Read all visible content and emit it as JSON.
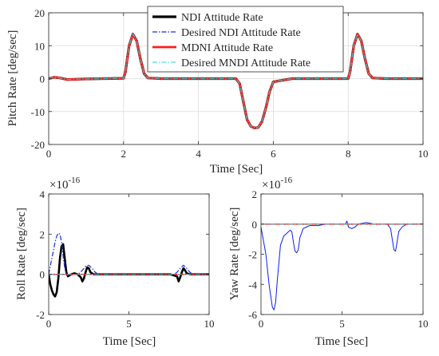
{
  "chart_data": [
    {
      "type": "line",
      "xlabel": "Time  [Sec]",
      "ylabel": "Pitch Rate [deg/sec]",
      "xlim": [
        0,
        10
      ],
      "ylim": [
        -20,
        20
      ],
      "xticks": [
        0,
        2,
        4,
        6,
        8,
        10
      ],
      "yticks": [
        -20,
        -10,
        0,
        10,
        20
      ],
      "grid": true,
      "legend_position": "top-center",
      "series": [
        {
          "name": "NDI Attitude Rate",
          "color": "#000000",
          "style": "solid",
          "x": [
            0,
            0.15,
            0.3,
            0.5,
            1.0,
            1.5,
            2.0,
            2.05,
            2.15,
            2.25,
            2.35,
            2.45,
            2.55,
            2.65,
            3.0,
            4.0,
            5.0,
            5.1,
            5.2,
            5.3,
            5.4,
            5.5,
            5.6,
            5.7,
            5.8,
            5.9,
            6.0,
            6.5,
            7.0,
            8.0,
            8.05,
            8.15,
            8.25,
            8.35,
            8.45,
            8.55,
            8.65,
            9.0,
            10.0
          ],
          "y": [
            0,
            0.4,
            0.2,
            -0.3,
            -0.1,
            0,
            0.1,
            2,
            10,
            13.5,
            11.5,
            6,
            1.5,
            0.2,
            0,
            0,
            0,
            -1.5,
            -7,
            -12.5,
            -14.5,
            -15,
            -14.8,
            -13,
            -9,
            -4,
            -1,
            0,
            0,
            0,
            2,
            10,
            13.5,
            11.5,
            6,
            1.5,
            0.2,
            0,
            0
          ]
        },
        {
          "name": "Desired NDI Attitude Rate",
          "color": "#1a2fd6",
          "style": "dashdot",
          "x": [
            0,
            0.15,
            0.3,
            0.5,
            1.0,
            1.5,
            2.0,
            2.05,
            2.15,
            2.25,
            2.35,
            2.45,
            2.55,
            2.65,
            3.0,
            4.0,
            5.0,
            5.1,
            5.2,
            5.3,
            5.4,
            5.5,
            5.6,
            5.7,
            5.8,
            5.9,
            6.0,
            6.5,
            7.0,
            8.0,
            8.05,
            8.15,
            8.25,
            8.35,
            8.45,
            8.55,
            8.65,
            9.0,
            10.0
          ],
          "y": [
            0,
            0.4,
            0.2,
            -0.3,
            -0.1,
            0,
            0.1,
            2,
            10,
            13.5,
            11.5,
            6,
            1.5,
            0.2,
            0,
            0,
            0,
            -1.5,
            -7,
            -12.5,
            -14.5,
            -15,
            -14.8,
            -13,
            -9,
            -4,
            -1,
            0,
            0,
            0,
            2,
            10,
            13.5,
            11.5,
            6,
            1.5,
            0.2,
            0,
            0
          ]
        },
        {
          "name": "MDNI Attitude Rate",
          "color": "#ff1a1a",
          "style": "solid",
          "x": [
            0,
            0.15,
            0.3,
            0.5,
            1.0,
            1.5,
            2.0,
            2.05,
            2.15,
            2.25,
            2.35,
            2.45,
            2.55,
            2.65,
            3.0,
            4.0,
            5.0,
            5.1,
            5.2,
            5.3,
            5.4,
            5.5,
            5.6,
            5.7,
            5.8,
            5.9,
            6.0,
            6.5,
            7.0,
            8.0,
            8.05,
            8.15,
            8.25,
            8.35,
            8.45,
            8.55,
            8.65,
            9.0,
            10.0
          ],
          "y": [
            0,
            0.4,
            0.2,
            -0.3,
            -0.1,
            0,
            0.1,
            2,
            10,
            13.5,
            11.5,
            6,
            1.5,
            0.2,
            0,
            0,
            0,
            -1.5,
            -7,
            -12.5,
            -14.5,
            -15,
            -14.8,
            -13,
            -9,
            -4,
            -1,
            0,
            0,
            0,
            2,
            10,
            13.5,
            11.5,
            6,
            1.5,
            0.2,
            0,
            0
          ]
        },
        {
          "name": "Desired MNDI Attitude Rate",
          "color": "#22d3d3",
          "style": "dashdot",
          "x": [
            0,
            0.15,
            0.3,
            0.5,
            1.0,
            1.5,
            2.0,
            2.05,
            2.15,
            2.25,
            2.35,
            2.45,
            2.55,
            2.65,
            3.0,
            4.0,
            5.0,
            5.1,
            5.2,
            5.3,
            5.4,
            5.5,
            5.6,
            5.7,
            5.8,
            5.9,
            6.0,
            6.5,
            7.0,
            8.0,
            8.05,
            8.15,
            8.25,
            8.35,
            8.45,
            8.55,
            8.65,
            9.0,
            10.0
          ],
          "y": [
            0,
            0.4,
            0.2,
            -0.3,
            -0.1,
            0,
            0.1,
            2,
            10,
            13.5,
            11.5,
            6,
            1.5,
            0.2,
            0,
            0,
            0,
            -1.5,
            -7,
            -12.5,
            -14.5,
            -15,
            -14.8,
            -13,
            -9,
            -4,
            -1,
            0,
            0,
            0,
            2,
            10,
            13.5,
            11.5,
            6,
            1.5,
            0.2,
            0,
            0
          ]
        }
      ]
    },
    {
      "type": "line",
      "xlabel": "Time  [Sec]",
      "ylabel": "Roll Rate [deg/sec]",
      "exponent_base": "×10",
      "exponent_power": "-16",
      "xlim": [
        0,
        10
      ],
      "ylim": [
        -2,
        4
      ],
      "xticks": [
        0,
        5,
        10
      ],
      "yticks": [
        -2,
        0,
        2,
        4
      ],
      "grid": false,
      "series": [
        {
          "color": "#000000",
          "style": "solid",
          "width": 2.6,
          "x": [
            0,
            0.1,
            0.2,
            0.3,
            0.4,
            0.5,
            0.6,
            0.7,
            0.8,
            0.9,
            1.0,
            1.1,
            1.2,
            1.3,
            1.4,
            1.6,
            1.8,
            2.0,
            2.1,
            2.2,
            2.3,
            2.4,
            2.5,
            2.6,
            2.8,
            3.0,
            3.5,
            4,
            5,
            6,
            7,
            7.6,
            8.0,
            8.1,
            8.2,
            8.3,
            8.4,
            8.5,
            8.6,
            8.8,
            9,
            10
          ],
          "y": [
            0,
            -0.5,
            -0.8,
            -1.0,
            -1.1,
            -0.9,
            -0.2,
            0.8,
            1.4,
            1.5,
            0.8,
            0.1,
            -0.1,
            -0.05,
            0,
            0.05,
            0,
            -0.15,
            -0.35,
            -0.2,
            0.1,
            0.35,
            0.3,
            0.1,
            0,
            0,
            0,
            0,
            0,
            0,
            0,
            0,
            -0.1,
            -0.35,
            -0.15,
            0.1,
            0.3,
            0.2,
            0.05,
            0,
            0,
            0
          ]
        },
        {
          "color": "#1a2fd6",
          "style": "dashdot",
          "width": 1.2,
          "x": [
            0,
            0.1,
            0.2,
            0.3,
            0.4,
            0.5,
            0.6,
            0.7,
            0.8,
            0.9,
            1.0,
            1.1,
            1.2,
            1.3,
            1.5,
            1.7,
            1.9,
            2.1,
            2.3,
            2.5,
            2.7,
            2.9,
            3.1,
            3.5,
            4,
            5,
            6,
            7,
            7.8,
            8.0,
            8.2,
            8.4,
            8.6,
            8.8,
            9,
            10
          ],
          "y": [
            0,
            0.4,
            0.8,
            1.2,
            1.6,
            1.9,
            2.05,
            2.0,
            1.6,
            0.9,
            0.3,
            0,
            -0.05,
            0,
            0,
            0,
            0.05,
            0.2,
            0.4,
            0.45,
            0.3,
            0.1,
            0,
            0,
            0,
            0,
            0,
            0,
            0,
            0.1,
            0.3,
            0.45,
            0.3,
            0.1,
            0,
            0
          ]
        },
        {
          "color": "#ff1a1a",
          "style": "solid",
          "width": 1.3,
          "x": [
            0,
            10
          ],
          "y": [
            0,
            0
          ]
        },
        {
          "color": "#22d3d3",
          "style": "dashdot",
          "width": 1.0,
          "x": [
            0,
            10
          ],
          "y": [
            0,
            0
          ]
        }
      ]
    },
    {
      "type": "line",
      "xlabel": "Time  [Sec]",
      "ylabel": "Yaw Rate [deg/sec]",
      "exponent_base": "×10",
      "exponent_power": "-16",
      "xlim": [
        0,
        10
      ],
      "ylim": [
        -6,
        2
      ],
      "xticks": [
        0,
        5,
        10
      ],
      "yticks": [
        -6,
        -4,
        -2,
        0,
        2
      ],
      "grid": false,
      "series": [
        {
          "color": "#0a1ef0",
          "style": "solid",
          "width": 1.0,
          "x": [
            0,
            0.3,
            0.5,
            0.7,
            0.8,
            0.9,
            1.0,
            1.2,
            1.4,
            1.6,
            1.8,
            1.9,
            2.0,
            2.1,
            2.2,
            2.3,
            2.4,
            2.6,
            2.8,
            3.0,
            3.5,
            4.0,
            4.5,
            5.0,
            5.2,
            5.3,
            5.4,
            5.6,
            5.8,
            6.0,
            6.5,
            7.0,
            7.5,
            7.8,
            8.0,
            8.1,
            8.2,
            8.3,
            8.4,
            8.5,
            8.7,
            9.0,
            9.5,
            10.0
          ],
          "y": [
            -0.2,
            -2.0,
            -4.0,
            -5.5,
            -5.7,
            -5.2,
            -3.8,
            -1.4,
            -0.8,
            -0.6,
            -0.4,
            -0.5,
            -1.2,
            -1.8,
            -1.9,
            -1.7,
            -0.9,
            -0.3,
            -0.2,
            -0.1,
            -0.1,
            0,
            0,
            0,
            0,
            0.2,
            -0.2,
            -0.3,
            -0.2,
            0,
            0.1,
            0,
            0,
            0,
            -0.3,
            -1.0,
            -1.7,
            -1.8,
            -1.2,
            -0.5,
            -0.2,
            0,
            0,
            0
          ]
        },
        {
          "color": "#ff1a1a",
          "style": "solid",
          "width": 1.3,
          "x": [
            0,
            10
          ],
          "y": [
            0,
            0
          ]
        },
        {
          "color": "#22d3d3",
          "style": "dashdot",
          "width": 1.0,
          "x": [
            0,
            10
          ],
          "y": [
            0,
            0
          ]
        }
      ]
    }
  ]
}
